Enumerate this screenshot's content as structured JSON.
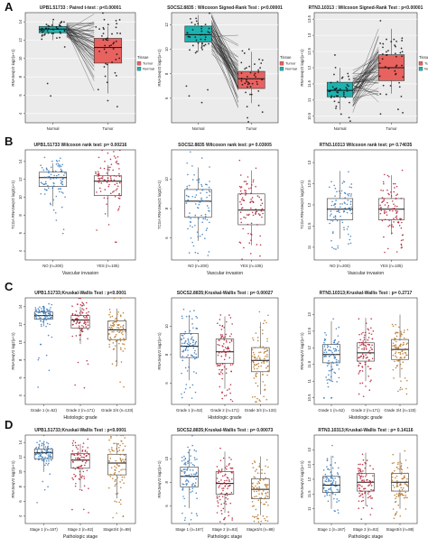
{
  "figure": {
    "panels": [
      {
        "letter": "A"
      },
      {
        "letter": "B"
      },
      {
        "letter": "C"
      },
      {
        "letter": "D"
      }
    ]
  },
  "colors": {
    "normal_box": "#1bb3b0",
    "tumor_box": "#e8625f",
    "group1_points": "#3f7fbf",
    "group2_points": "#b5283a",
    "group3_points": "#b8782e",
    "box_outline": "#333333"
  },
  "chart_data": [
    {
      "panel": "A",
      "type": "box",
      "title": "UPB1.51733 : Paired t-test : p<0.00001",
      "xlabel": "",
      "ylabel": "RNASeqV2 log2(x+1)",
      "paired": true,
      "categories": [
        "Normal",
        "Tumor"
      ],
      "ylim": [
        3,
        15
      ],
      "yticks": [
        4,
        6,
        8,
        10,
        12,
        14
      ],
      "box_stats": [
        {
          "q1": 12.8,
          "median": 13.2,
          "q3": 13.5,
          "lower": 12.0,
          "upper": 14.1
        },
        {
          "q1": 9.5,
          "median": 11.2,
          "q3": 12.2,
          "lower": 6.2,
          "upper": 13.5
        }
      ],
      "legend": {
        "title": "Tissue",
        "entries": [
          "Tumor",
          "Normal"
        ],
        "position": "inside top-right"
      }
    },
    {
      "panel": "A",
      "type": "box",
      "title": "SOCS2.8835 : Wilcoxon Signed-Rank Test : p<0.00001",
      "xlabel": "",
      "ylabel": "RNASeqV2 log2(x+1)",
      "paired": true,
      "categories": [
        "Normal",
        "Tumor"
      ],
      "ylim": [
        4,
        13
      ],
      "yticks": [
        6,
        8,
        10,
        12
      ],
      "box_stats": [
        {
          "q1": 10.6,
          "median": 11.2,
          "q3": 11.9,
          "lower": 9.8,
          "upper": 12.8
        },
        {
          "q1": 6.8,
          "median": 7.6,
          "q3": 8.2,
          "lower": 5.6,
          "upper": 9.8
        }
      ],
      "legend": {
        "title": "Tissue",
        "entries": [
          "Tumor",
          "Normal"
        ],
        "position": "inside top-right"
      }
    },
    {
      "panel": "A",
      "type": "box",
      "title": "RTN3.10313 : Wilcoxon Signed-Rank Test : p<0.00001",
      "xlabel": "",
      "ylabel": "RNASeqV2 log2(x+1)",
      "paired": true,
      "categories": [
        "Normal",
        "Tumor"
      ],
      "ylim": [
        10.3,
        13.7
      ],
      "yticks": [
        10.5,
        11,
        11.5,
        12,
        12.5,
        13,
        13.5
      ],
      "box_stats": [
        {
          "q1": 11.1,
          "median": 11.3,
          "q3": 11.55,
          "lower": 10.7,
          "upper": 12.0
        },
        {
          "q1": 11.6,
          "median": 12.0,
          "q3": 12.4,
          "lower": 11.2,
          "upper": 13.2
        }
      ],
      "legend": {
        "title": "Tissue",
        "entries": [
          "Tumor",
          "Normal"
        ],
        "position": "inside top-right"
      }
    },
    {
      "panel": "B",
      "type": "box",
      "title": "UPB1.51733   Wilcoxon rank test: p= 0.00216",
      "xlabel": "Vascular invasion",
      "ylabel": "TCGA RNASeqV2 log2(x+1)",
      "categories": [
        "NO (n=200)",
        "YES (n=105)"
      ],
      "ylim": [
        3,
        15.3
      ],
      "yticks": [
        4,
        6,
        8,
        10,
        12,
        14
      ],
      "box_stats": [
        {
          "q1": 11.2,
          "median": 12.2,
          "q3": 12.8,
          "lower": 9.0,
          "upper": 13.8
        },
        {
          "q1": 10.2,
          "median": 11.8,
          "q3": 12.4,
          "lower": 7.8,
          "upper": 13.6
        }
      ]
    },
    {
      "panel": "B",
      "type": "box",
      "title": "SOCS2.8835   Wilcoxon rank test: p= 0.03005",
      "xlabel": "Vascular invasion",
      "ylabel": "TCGA RNASeqV2 log2(x+1)",
      "categories": [
        "NO (n=200)",
        "YES (n=105)"
      ],
      "ylim": [
        4.5,
        12
      ],
      "yticks": [
        6,
        8,
        10
      ],
      "box_stats": [
        {
          "q1": 7.4,
          "median": 8.5,
          "q3": 9.3,
          "lower": 5.8,
          "upper": 10.8
        },
        {
          "q1": 6.9,
          "median": 7.9,
          "q3": 9.0,
          "lower": 5.5,
          "upper": 10.6
        }
      ]
    },
    {
      "panel": "B",
      "type": "box",
      "title": "RTN3.10313   Wilcoxon rank test: p= 0.74035",
      "xlabel": "Vascular invasion",
      "ylabel": "TCGA RNASeqV2 log2(x+1)",
      "categories": [
        "NO (n=200)",
        "YES (n=105)"
      ],
      "ylim": [
        10.7,
        13.3
      ],
      "yticks": [
        11,
        11.5,
        12,
        12.5,
        13
      ],
      "box_stats": [
        {
          "q1": 11.65,
          "median": 11.9,
          "q3": 12.15,
          "lower": 11.2,
          "upper": 12.8
        },
        {
          "q1": 11.65,
          "median": 11.9,
          "q3": 12.15,
          "lower": 11.3,
          "upper": 12.7
        }
      ]
    },
    {
      "panel": "C",
      "type": "box",
      "title": "UPB1.51733;Kruskal-Wallis Test : p<0.0001",
      "xlabel": "Histologic grade",
      "ylabel": "RNASeqV2 log2(x+1)",
      "categories": [
        "Grade 1 (n=52)",
        "Grade 2 (n=171)",
        "Grade 3/4 (n=133)"
      ],
      "ylim": [
        3,
        15
      ],
      "yticks": [
        4,
        6,
        8,
        10,
        12,
        14
      ],
      "box_stats": [
        {
          "q1": 12.6,
          "median": 13.0,
          "q3": 13.4,
          "lower": 11.8,
          "upper": 14.1
        },
        {
          "q1": 11.6,
          "median": 12.5,
          "q3": 13.0,
          "lower": 9.8,
          "upper": 14.0
        },
        {
          "q1": 10.3,
          "median": 11.4,
          "q3": 12.4,
          "lower": 7.4,
          "upper": 13.8
        }
      ]
    },
    {
      "panel": "C",
      "type": "box",
      "title": "SOCS2.8835;Kruskal-Wallis Test : p= 0.00027",
      "xlabel": "Histologic grade",
      "ylabel": "RNASeqV2 log2(x+1)",
      "categories": [
        "Grade 1 (n=52)",
        "Grade 2 (n=171)",
        "Grade 3/4 (n=133)"
      ],
      "ylim": [
        4.5,
        12
      ],
      "yticks": [
        6,
        8,
        10
      ],
      "box_stats": [
        {
          "q1": 7.8,
          "median": 8.6,
          "q3": 9.5,
          "lower": 6.2,
          "upper": 10.8
        },
        {
          "q1": 7.4,
          "median": 8.2,
          "q3": 9.1,
          "lower": 5.6,
          "upper": 10.7
        },
        {
          "q1": 6.8,
          "median": 7.6,
          "q3": 8.5,
          "lower": 5.2,
          "upper": 10.3
        }
      ]
    },
    {
      "panel": "C",
      "type": "box",
      "title": "RTN3.10313;Kruskal-Wallis Test : p= 0.2717",
      "xlabel": "Histologic grade",
      "ylabel": "RNASeqV2 log2(x+1)",
      "categories": [
        "Grade 1 (n=52)",
        "Grade 2 (n=171)",
        "Grade 3/4 (n=133)"
      ],
      "ylim": [
        10.3,
        13.5
      ],
      "yticks": [
        10.5,
        11,
        11.5,
        12,
        12.5,
        13
      ],
      "box_stats": [
        {
          "q1": 11.55,
          "median": 11.8,
          "q3": 12.1,
          "lower": 11.0,
          "upper": 12.8
        },
        {
          "q1": 11.6,
          "median": 11.85,
          "q3": 12.15,
          "lower": 11.0,
          "upper": 12.9
        },
        {
          "q1": 11.65,
          "median": 11.95,
          "q3": 12.25,
          "lower": 11.1,
          "upper": 13.0
        }
      ]
    },
    {
      "panel": "D",
      "type": "box",
      "title": "UPB1.51733;Kruskal-Wallis Test : p<0.0001",
      "xlabel": "Pathologic stage",
      "ylabel": "RNASeqV2 log2(x+1)",
      "categories": [
        "Stage 1 (n=167)",
        "Stage 2 (n=82)",
        "Stage3/4 (n=88)"
      ],
      "ylim": [
        3,
        15
      ],
      "yticks": [
        4,
        6,
        8,
        10,
        12,
        14
      ],
      "box_stats": [
        {
          "q1": 11.8,
          "median": 12.6,
          "q3": 13.1,
          "lower": 10.0,
          "upper": 14.0
        },
        {
          "q1": 10.5,
          "median": 11.6,
          "q3": 12.5,
          "lower": 7.8,
          "upper": 13.8
        },
        {
          "q1": 9.6,
          "median": 11.2,
          "q3": 12.4,
          "lower": 6.4,
          "upper": 13.8
        }
      ]
    },
    {
      "panel": "D",
      "type": "box",
      "title": "SOCS2.8835;Kruskal-Wallis Test : p= 0.00073",
      "xlabel": "Pathologic stage",
      "ylabel": "RNASeqV2 log2(x+1)",
      "categories": [
        "Stage 1 (n=167)",
        "Stage 2 (n=82)",
        "Stage3/4 (n=88)"
      ],
      "ylim": [
        4.5,
        12
      ],
      "yticks": [
        6,
        8,
        10
      ],
      "box_stats": [
        {
          "q1": 7.6,
          "median": 8.5,
          "q3": 9.3,
          "lower": 5.8,
          "upper": 10.8
        },
        {
          "q1": 7.0,
          "median": 7.9,
          "q3": 8.9,
          "lower": 5.4,
          "upper": 10.6
        },
        {
          "q1": 6.6,
          "median": 7.4,
          "q3": 8.3,
          "lower": 5.2,
          "upper": 10.2
        }
      ]
    },
    {
      "panel": "D",
      "type": "box",
      "title": "RTN3.10313;Kruskal-Wallis Test : p= 0.14116",
      "xlabel": "Pathologic stage",
      "ylabel": "RNASeqV2 log2(x+1)",
      "categories": [
        "Stage 1 (n=167)",
        "Stage 2 (n=82)",
        "Stage3/4 (n=88)"
      ],
      "ylim": [
        10.5,
        13.5
      ],
      "yticks": [
        11,
        11.5,
        12,
        12.5,
        13
      ],
      "box_stats": [
        {
          "q1": 11.55,
          "median": 11.8,
          "q3": 12.1,
          "lower": 11.0,
          "upper": 12.8
        },
        {
          "q1": 11.6,
          "median": 11.9,
          "q3": 12.2,
          "lower": 11.1,
          "upper": 12.9
        },
        {
          "q1": 11.6,
          "median": 11.9,
          "q3": 12.2,
          "lower": 11.0,
          "upper": 12.9
        }
      ]
    }
  ]
}
